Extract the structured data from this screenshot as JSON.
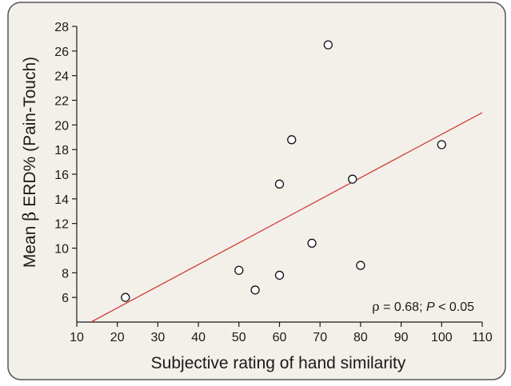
{
  "chart_data": {
    "type": "scatter",
    "xlabel": "Subjective rating of hand similarity",
    "ylabel_prefix": "Mean ",
    "ylabel_symbol": "β",
    "ylabel_suffix": " ERD% (Pain-Touch)",
    "xlim": [
      10,
      110
    ],
    "ylim": [
      4,
      28
    ],
    "x_ticks": [
      10,
      20,
      30,
      40,
      50,
      60,
      70,
      80,
      90,
      100,
      110
    ],
    "y_ticks": [
      6,
      8,
      10,
      12,
      14,
      16,
      18,
      20,
      22,
      24,
      26,
      28
    ],
    "points": [
      {
        "x": 22,
        "y": 6.0
      },
      {
        "x": 50,
        "y": 8.2
      },
      {
        "x": 54,
        "y": 6.6
      },
      {
        "x": 60,
        "y": 7.8
      },
      {
        "x": 60,
        "y": 15.2
      },
      {
        "x": 63,
        "y": 18.8
      },
      {
        "x": 68,
        "y": 10.4
      },
      {
        "x": 72,
        "y": 26.5
      },
      {
        "x": 78,
        "y": 15.6
      },
      {
        "x": 80,
        "y": 8.6
      },
      {
        "x": 100,
        "y": 18.4
      }
    ],
    "fit_line": {
      "x": [
        13.5,
        110
      ],
      "y": [
        4.0,
        21.0
      ]
    },
    "annotation": {
      "rho": "ρ",
      "rho_value": " = 0.68; ",
      "p": "P",
      "p_value": " < 0.05"
    },
    "grid": false,
    "colors": {
      "background": "#f3f0ea",
      "border": "#555555",
      "fit_line": "#d23a3a",
      "marker_edge": "#111111",
      "marker_fill": "#ffffff"
    }
  }
}
